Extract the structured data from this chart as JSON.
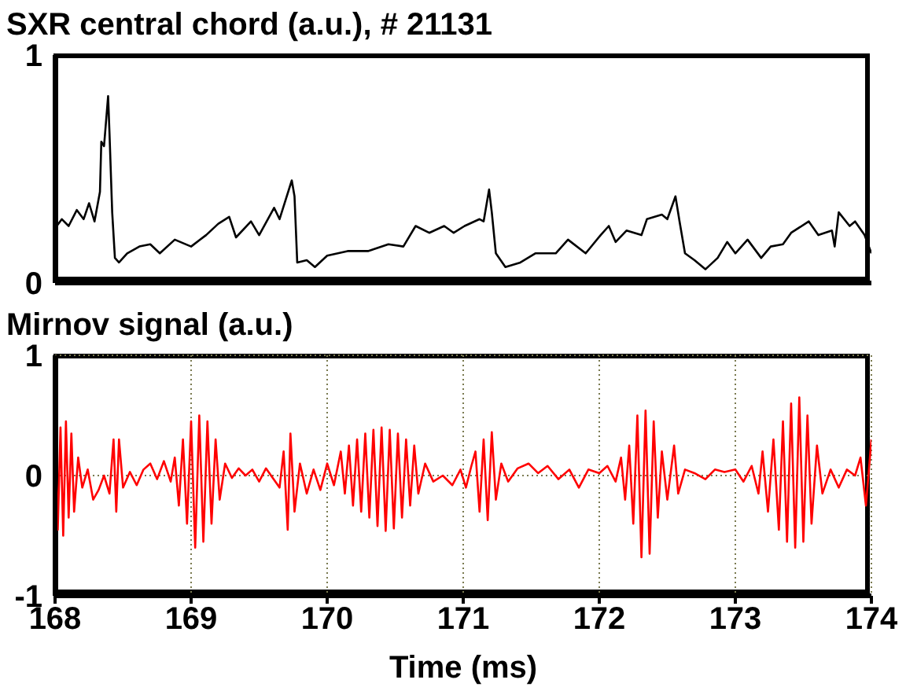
{
  "chart_data": [
    {
      "type": "line",
      "title": "SXR central chord (a.u.), # 21131",
      "xlim": [
        168,
        174
      ],
      "xticks": [
        168,
        169,
        170,
        171,
        172,
        173,
        174
      ],
      "ylim": [
        0,
        1
      ],
      "yticks": [
        0,
        1
      ],
      "grid": "x",
      "tick_labels": "y",
      "series": [
        {
          "color": "#000000",
          "x": [
            168.0,
            168.05,
            168.1,
            168.16,
            168.21,
            168.25,
            168.29,
            168.33,
            168.34,
            168.36,
            168.39,
            168.4,
            168.42,
            168.44,
            168.47,
            168.53,
            168.62,
            168.7,
            168.77,
            168.88,
            169.0,
            169.11,
            169.2,
            169.28,
            169.33,
            169.44,
            169.5,
            169.61,
            169.65,
            169.74,
            169.76,
            169.78,
            169.85,
            169.91,
            170.0,
            170.15,
            170.3,
            170.45,
            170.56,
            170.65,
            170.75,
            170.86,
            170.93,
            171.01,
            171.12,
            171.15,
            171.19,
            171.21,
            171.24,
            171.31,
            171.42,
            171.53,
            171.68,
            171.77,
            171.9,
            172.01,
            172.07,
            172.12,
            172.2,
            172.31,
            172.35,
            172.46,
            172.5,
            172.56,
            172.59,
            172.63,
            172.7,
            172.78,
            172.87,
            172.94,
            173.0,
            173.09,
            173.19,
            173.26,
            173.35,
            173.41,
            173.54,
            173.61,
            173.71,
            173.73,
            173.76,
            173.84,
            173.88,
            173.95,
            174.0
          ],
          "values": [
            0.24,
            0.28,
            0.25,
            0.32,
            0.28,
            0.35,
            0.27,
            0.4,
            0.62,
            0.6,
            0.82,
            0.66,
            0.31,
            0.11,
            0.09,
            0.13,
            0.16,
            0.17,
            0.13,
            0.19,
            0.16,
            0.21,
            0.26,
            0.29,
            0.2,
            0.27,
            0.21,
            0.33,
            0.28,
            0.45,
            0.38,
            0.09,
            0.1,
            0.07,
            0.12,
            0.14,
            0.14,
            0.17,
            0.16,
            0.25,
            0.22,
            0.25,
            0.22,
            0.25,
            0.28,
            0.27,
            0.41,
            0.31,
            0.13,
            0.07,
            0.09,
            0.13,
            0.13,
            0.19,
            0.13,
            0.21,
            0.25,
            0.18,
            0.23,
            0.21,
            0.28,
            0.3,
            0.28,
            0.38,
            0.27,
            0.13,
            0.1,
            0.06,
            0.11,
            0.18,
            0.13,
            0.19,
            0.11,
            0.16,
            0.17,
            0.22,
            0.27,
            0.21,
            0.23,
            0.16,
            0.31,
            0.25,
            0.27,
            0.21,
            0.13
          ]
        }
      ]
    },
    {
      "type": "line",
      "title": "Mirnov signal (a.u.)",
      "xlabel": "Time (ms)",
      "xlim": [
        168,
        174
      ],
      "xticks": [
        168,
        169,
        170,
        171,
        172,
        173,
        174
      ],
      "ylim": [
        -1,
        1
      ],
      "yticks": [
        -1,
        0,
        1
      ],
      "grid": true,
      "series": [
        {
          "color": "#ff0000",
          "x": [
            168.0,
            168.02,
            168.04,
            168.06,
            168.08,
            168.1,
            168.12,
            168.14,
            168.17,
            168.2,
            168.24,
            168.28,
            168.32,
            168.36,
            168.4,
            168.43,
            168.45,
            168.47,
            168.5,
            168.55,
            168.6,
            168.65,
            168.7,
            168.75,
            168.8,
            168.85,
            168.88,
            168.91,
            168.94,
            168.97,
            169.0,
            169.03,
            169.06,
            169.09,
            169.12,
            169.15,
            169.18,
            169.21,
            169.25,
            169.3,
            169.35,
            169.4,
            169.45,
            169.5,
            169.55,
            169.6,
            169.65,
            169.68,
            169.71,
            169.73,
            169.76,
            169.8,
            169.85,
            169.9,
            169.95,
            170.0,
            170.05,
            170.1,
            170.13,
            170.16,
            170.19,
            170.22,
            170.25,
            170.28,
            170.31,
            170.34,
            170.37,
            170.4,
            170.43,
            170.46,
            170.49,
            170.52,
            170.55,
            170.58,
            170.61,
            170.64,
            170.67,
            170.72,
            170.78,
            170.85,
            170.92,
            170.98,
            171.02,
            171.06,
            171.09,
            171.12,
            171.15,
            171.18,
            171.21,
            171.24,
            171.28,
            171.33,
            171.4,
            171.48,
            171.55,
            171.62,
            171.7,
            171.78,
            171.85,
            171.92,
            172.0,
            172.06,
            172.12,
            172.16,
            172.19,
            172.22,
            172.25,
            172.28,
            172.31,
            172.34,
            172.37,
            172.4,
            172.43,
            172.46,
            172.5,
            172.55,
            172.58,
            172.63,
            172.7,
            172.78,
            172.85,
            172.92,
            173.0,
            173.06,
            173.12,
            173.17,
            173.2,
            173.24,
            173.28,
            173.32,
            173.35,
            173.38,
            173.41,
            173.44,
            173.47,
            173.5,
            173.53,
            173.56,
            173.6,
            173.64,
            173.7,
            173.76,
            173.82,
            173.88,
            173.92,
            173.96,
            174.0
          ],
          "values": [
            0.3,
            -0.45,
            0.4,
            -0.5,
            0.45,
            -0.35,
            0.35,
            -0.3,
            0.15,
            -0.1,
            0.05,
            -0.2,
            -0.12,
            0.0,
            -0.15,
            0.3,
            -0.3,
            0.3,
            -0.1,
            0.03,
            -0.08,
            0.05,
            0.1,
            -0.03,
            0.12,
            -0.05,
            0.15,
            -0.25,
            0.3,
            -0.4,
            0.45,
            -0.6,
            0.5,
            -0.55,
            0.45,
            -0.4,
            0.3,
            -0.2,
            0.1,
            -0.02,
            0.06,
            0.0,
            0.05,
            -0.05,
            0.06,
            -0.02,
            -0.1,
            0.2,
            -0.45,
            0.35,
            -0.3,
            0.1,
            -0.15,
            0.05,
            -0.12,
            0.1,
            -0.08,
            0.2,
            -0.15,
            0.25,
            -0.25,
            0.3,
            -0.3,
            0.35,
            -0.35,
            0.38,
            -0.42,
            0.4,
            -0.46,
            0.38,
            -0.44,
            0.35,
            -0.35,
            0.3,
            -0.25,
            0.25,
            -0.15,
            0.1,
            -0.05,
            0.0,
            -0.08,
            0.05,
            -0.1,
            0.08,
            0.2,
            -0.3,
            0.3,
            -0.37,
            0.36,
            -0.2,
            0.1,
            -0.05,
            0.06,
            0.1,
            0.02,
            0.08,
            -0.03,
            0.05,
            -0.1,
            0.05,
            0.02,
            0.08,
            -0.05,
            0.15,
            -0.2,
            0.25,
            -0.4,
            0.5,
            -0.68,
            0.54,
            -0.65,
            0.45,
            -0.35,
            0.2,
            -0.2,
            0.25,
            -0.15,
            0.05,
            0.02,
            -0.03,
            0.05,
            0.03,
            0.05,
            -0.05,
            0.08,
            -0.15,
            0.2,
            -0.3,
            0.3,
            -0.45,
            0.45,
            -0.55,
            0.6,
            -0.6,
            0.65,
            -0.55,
            0.5,
            -0.4,
            0.25,
            -0.15,
            0.05,
            -0.1,
            0.05,
            0.0,
            0.15,
            -0.25,
            0.3
          ]
        }
      ]
    }
  ]
}
